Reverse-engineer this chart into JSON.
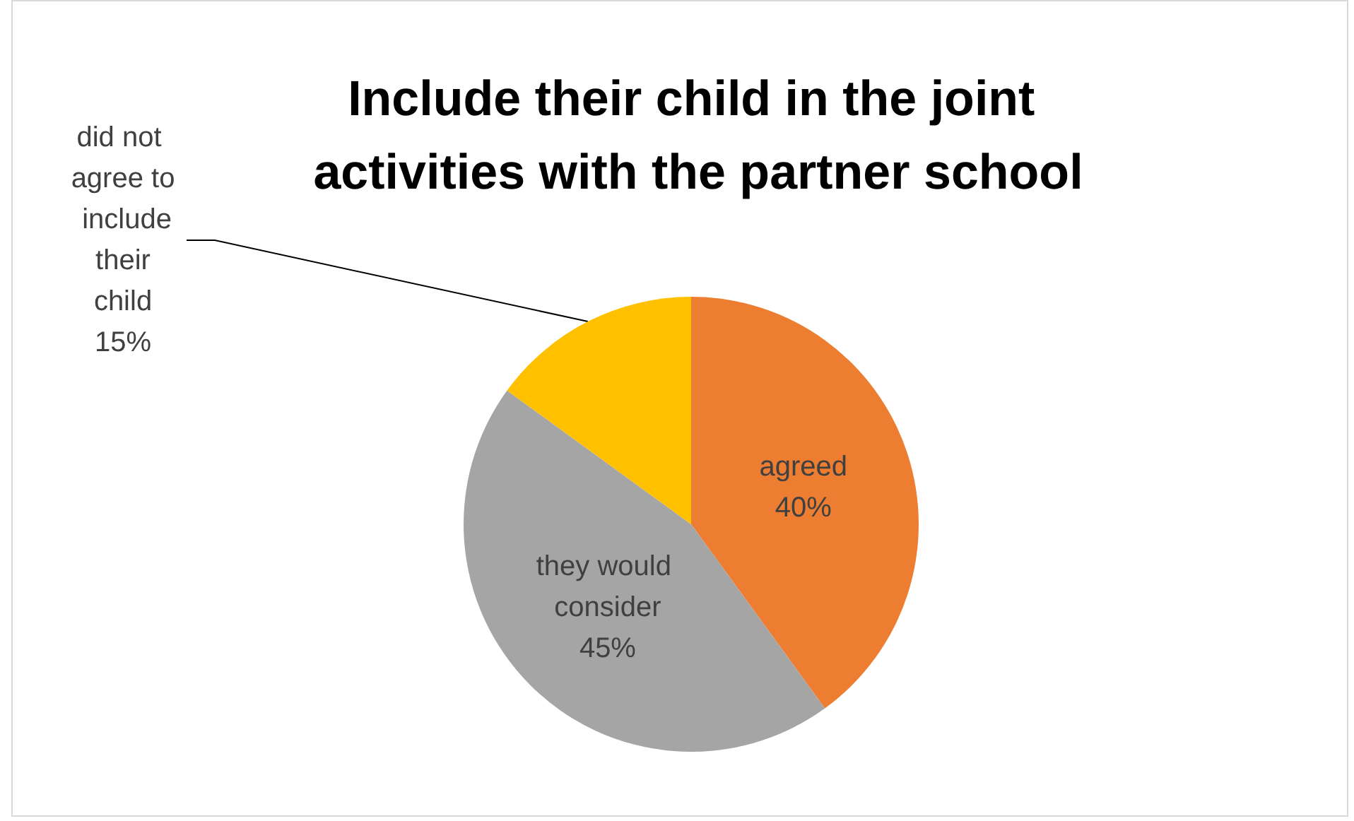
{
  "chart_data": {
    "type": "pie",
    "title": "Include their child in the joint activities with the partner school",
    "categories": [
      "agreed",
      "they would consider",
      "did not agree to include their child"
    ],
    "values": [
      40,
      45,
      15
    ],
    "colors": [
      "#ed7d31",
      "#a5a5a5",
      "#ffc000"
    ],
    "value_labels": [
      "40%",
      "45%",
      "15%"
    ],
    "legend": false
  }
}
